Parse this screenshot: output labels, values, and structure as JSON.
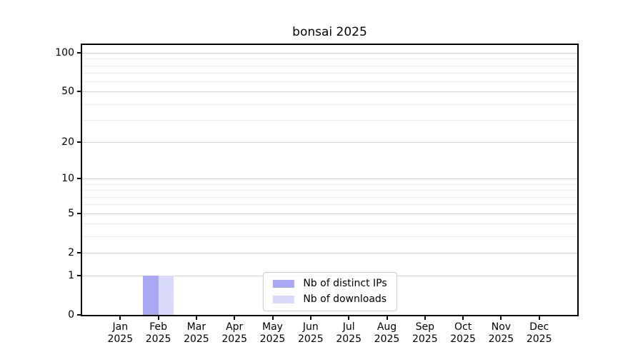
{
  "chart_data": {
    "type": "bar",
    "title": "bonsai 2025",
    "categories": [
      "Jan 2025",
      "Feb 2025",
      "Mar 2025",
      "Apr 2025",
      "May 2025",
      "Jun 2025",
      "Jul 2025",
      "Aug 2025",
      "Sep 2025",
      "Oct 2025",
      "Nov 2025",
      "Dec 2025"
    ],
    "series": [
      {
        "name": "Nb of distinct IPs",
        "color": "#a8a8f3",
        "values": [
          0,
          1,
          0,
          0,
          0,
          0,
          0,
          0,
          0,
          0,
          0,
          0
        ]
      },
      {
        "name": "Nb of downloads",
        "color": "#d9d9f9",
        "values": [
          0,
          1,
          0,
          0,
          0,
          0,
          0,
          0,
          0,
          0,
          0,
          0
        ]
      }
    ],
    "xlabel": "",
    "ylabel": "",
    "y_scale": "log1p",
    "ylim": [
      0,
      115
    ],
    "y_major_ticks": [
      0,
      1,
      2,
      5,
      10,
      20,
      50,
      100
    ],
    "y_minor_ticks": [
      3,
      4,
      6,
      7,
      8,
      9,
      30,
      40,
      60,
      70,
      80,
      90
    ],
    "grid": "on",
    "legend_position": "lower center inside"
  },
  "colors": {
    "background": "#ffffff",
    "spine": "#000000",
    "grid_major": "#d2d2d2",
    "grid_minor": "#ececec",
    "bar_distinct_ips": "#a8a8f3",
    "bar_downloads": "#d9d9f9",
    "legend_border": "#cbcbcb",
    "text": "#000000"
  }
}
